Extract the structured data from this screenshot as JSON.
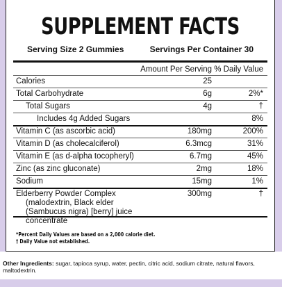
{
  "title": "SUPPLEMENT FACTS",
  "serving_size": "Serving Size 2 Gummies",
  "servings_per_container": "Servings Per Container 30",
  "table": {
    "header": [
      "Amount Per Serving",
      "% Daily Value"
    ],
    "rows": [
      {
        "name": "Calories",
        "amount": "25"
      },
      {
        "name": "Total Carbohydrate",
        "amount": "6g",
        "dv": "2%*"
      },
      {
        "name": "Total Sugars",
        "amount": "4g",
        "dv": "†"
      },
      {
        "name": "Includes 4g Added Sugars",
        "dv": "8%"
      },
      {
        "name": "Vitamin C (as ascorbic acid)",
        "amount": "180mg",
        "dv": "200%"
      },
      {
        "name": "Vitamin D (as cholecalciferol)",
        "amount": "6.3mcg",
        "dv": "31%"
      },
      {
        "name": "Vitamin E (as d-alpha tocopheryl)",
        "amount": "6.7mg",
        "dv": "45%"
      },
      {
        "name": "Zinc (as zinc gluconate)",
        "amount": "2mg",
        "dv": "18%"
      },
      {
        "name": "Sodium",
        "amount": "15mg",
        "dv": "1%"
      },
      {
        "name": "Elderberry Powder Complex",
        "detail": "(malodextrin, Black elder (Sambucus nigra) [berry] juice concentrate",
        "amount": "300mg",
        "dv": "†"
      }
    ]
  },
  "footnotes": [
    "*Percent Daily Values are based on a 2,000 calorie diet.",
    "† Daily Value not established."
  ],
  "other_ingredients": {
    "label": "Other Ingredients:",
    "text": "sugar, tapioca syrup, water, pectin, citric acid, sodium citrate, natural flavors, maltodextrin."
  }
}
